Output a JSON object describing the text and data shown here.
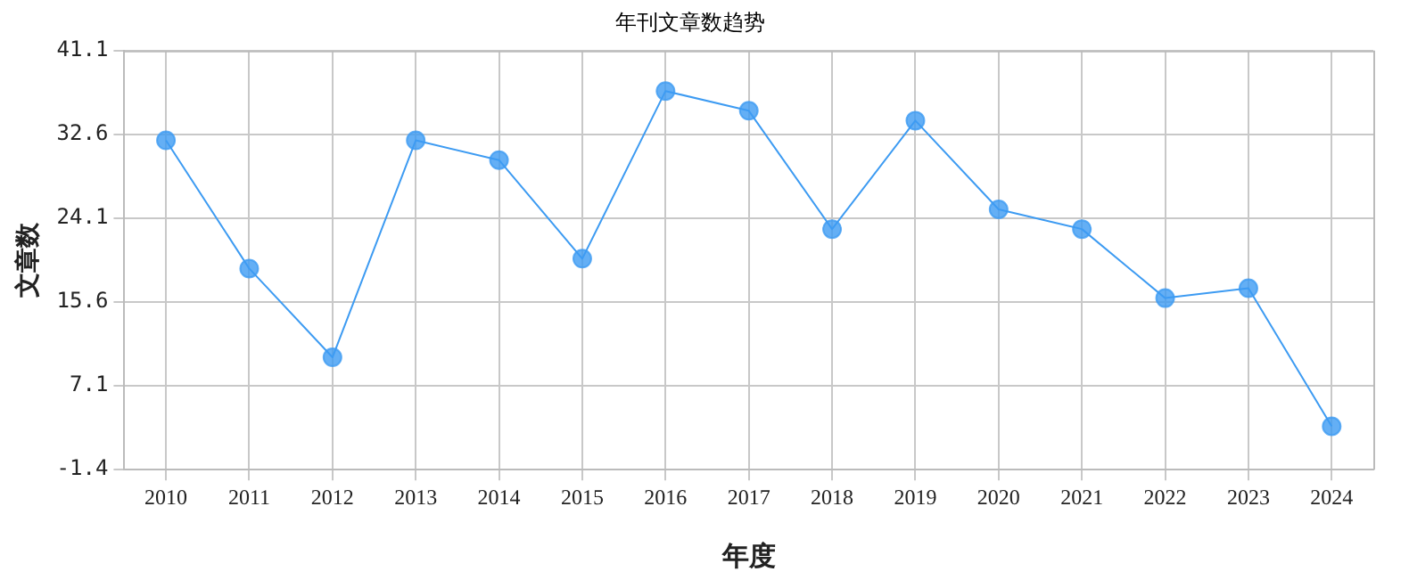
{
  "chart_data": {
    "type": "line",
    "title": "年刊文章数趋势",
    "xlabel": "年度",
    "ylabel": "文章数",
    "categories": [
      "2010",
      "2011",
      "2012",
      "2013",
      "2014",
      "2015",
      "2016",
      "2017",
      "2018",
      "2019",
      "2020",
      "2021",
      "2022",
      "2023",
      "2024"
    ],
    "series": [
      {
        "color": "#3d9bf2",
        "values": [
          32,
          19,
          10,
          32,
          30,
          20,
          37,
          35,
          23,
          34,
          25,
          23,
          16,
          17,
          3
        ]
      }
    ],
    "ylim": [
      -1.4,
      41.1
    ],
    "yticks": [
      -1.4,
      7.1,
      15.6,
      24.1,
      32.6,
      41.1
    ],
    "grid": true,
    "legend": false,
    "marker": "circle",
    "line_style": "solid"
  }
}
